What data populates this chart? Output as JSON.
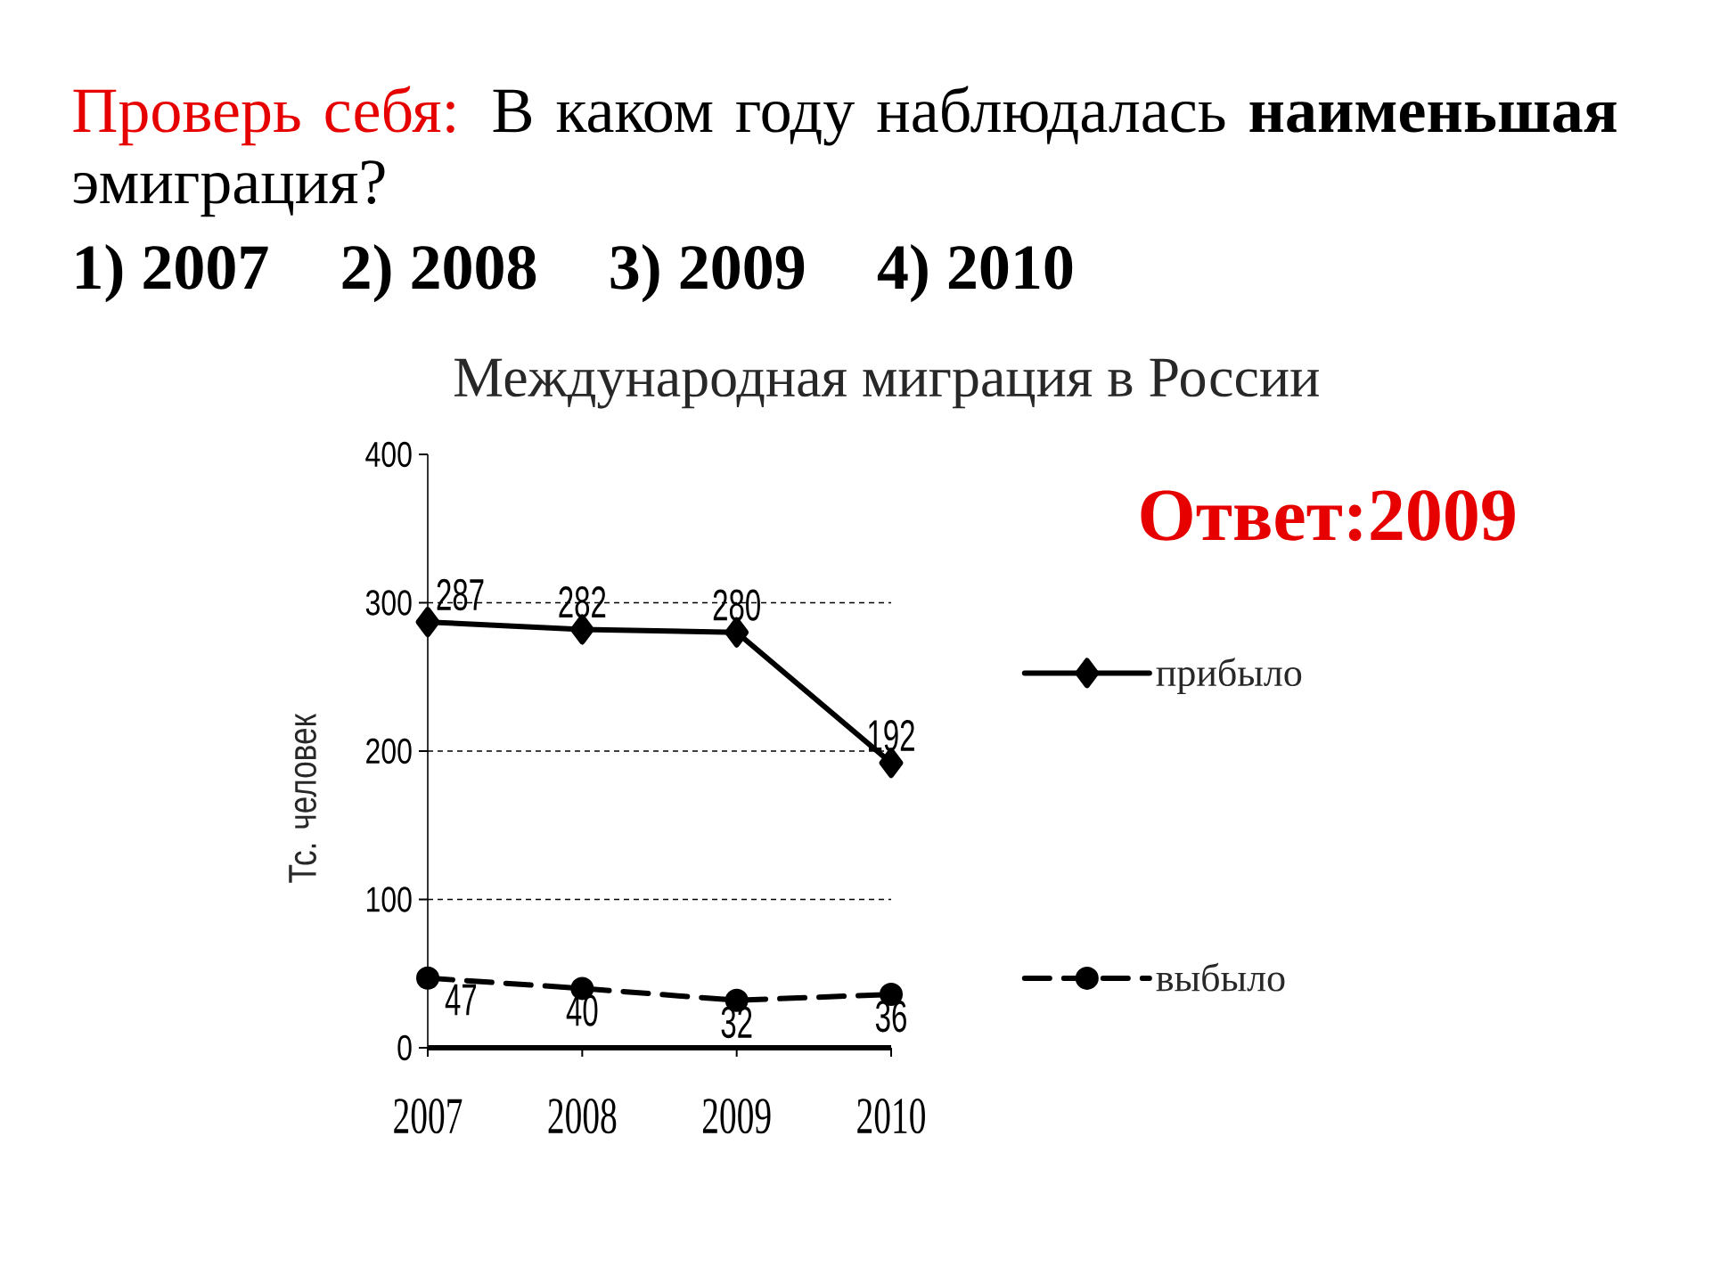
{
  "chart_data": {
    "type": "line",
    "title": "Международная миграция в России",
    "ylabel": "Тс. человек",
    "categories": [
      "2007",
      "2008",
      "2009",
      "2010"
    ],
    "series": [
      {
        "name": "прибыло",
        "color": "#000000",
        "values": [
          287,
          282,
          280,
          192
        ],
        "marker": "diamond",
        "line_style": "solid"
      },
      {
        "name": "выбыло",
        "color": "#000000",
        "values": [
          47,
          40,
          32,
          36
        ],
        "marker": "circle",
        "line_style": "dashed"
      }
    ],
    "ylim": [
      0,
      400
    ],
    "yticks": [
      0,
      100,
      200,
      300,
      400
    ],
    "grid": "y",
    "legend": "right",
    "data_labels": true,
    "annotations": [
      "Проверь себя:",
      "В каком году наблюдалась **наименьшая** эмиграция?",
      "1) 2007   2) 2008   3) 2009   4) 2010",
      "Ответ:2009"
    ]
  }
}
